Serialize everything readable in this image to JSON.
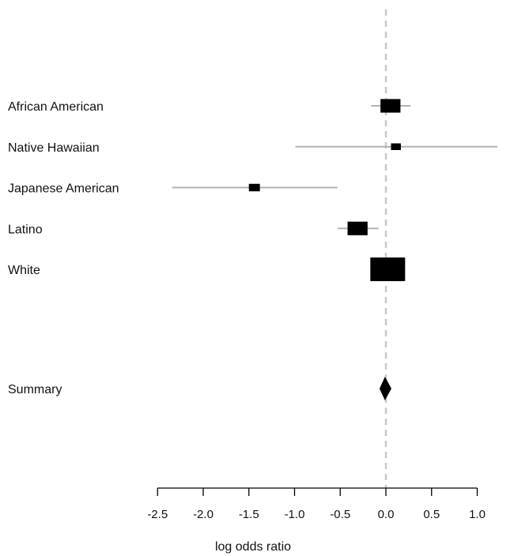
{
  "chart_data": {
    "type": "forest",
    "xlabel": "log odds ratio",
    "xlim": [
      -2.5,
      1.3
    ],
    "x_ticks": [
      -2.5,
      -2.0,
      -1.5,
      -1.0,
      -0.5,
      0.0,
      0.5,
      1.0
    ],
    "x_tick_labels": [
      "-2.5",
      "-2.0",
      "-1.5",
      "-1.0",
      "-0.5",
      "0.0",
      "0.5",
      "1.0"
    ],
    "reference_line": 0.0,
    "studies": [
      {
        "label": "African American",
        "estimate": 0.05,
        "ci_low": -0.16,
        "ci_high": 0.27,
        "weight": 0.33
      },
      {
        "label": "Native Hawaiian",
        "estimate": 0.11,
        "ci_low": -0.99,
        "ci_high": 1.22,
        "weight": 0.08
      },
      {
        "label": "Japanese American",
        "estimate": -1.44,
        "ci_low": -2.34,
        "ci_high": -0.53,
        "weight": 0.1
      },
      {
        "label": "Latino",
        "estimate": -0.31,
        "ci_low": -0.53,
        "ci_high": -0.08,
        "weight": 0.33
      },
      {
        "label": "White",
        "estimate": 0.02,
        "ci_low": -0.17,
        "ci_high": 0.21,
        "weight": 1.0
      }
    ],
    "summary": {
      "label": "Summary",
      "estimate": -0.01,
      "ci_low": -0.07,
      "ci_high": 0.06
    },
    "colors": {
      "marker": "#000000",
      "ci_line": "#b3b3b3",
      "reference_line": "#c8c8c8",
      "axis": "#000000"
    }
  }
}
